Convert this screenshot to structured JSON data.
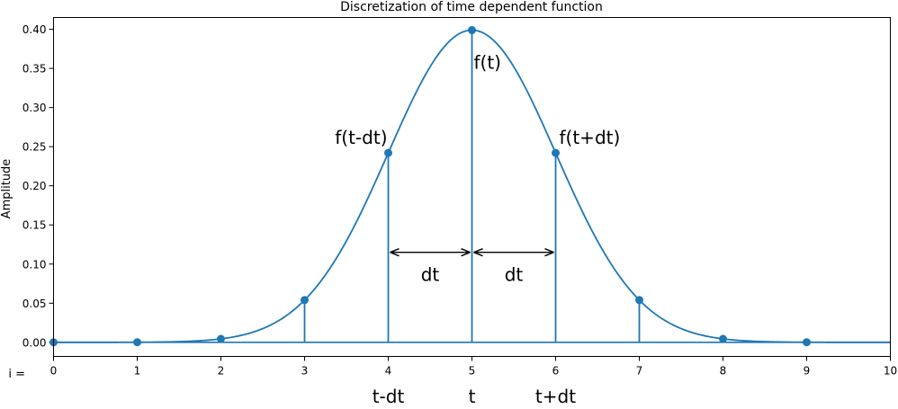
{
  "chart_data": {
    "type": "line",
    "title": "Discretization of time dependent function",
    "xlabel": "",
    "ylabel": "Amplitude",
    "xlim": [
      0,
      10
    ],
    "ylim": [
      -0.018,
      0.415
    ],
    "x_ticks": [
      0,
      1,
      2,
      3,
      4,
      5,
      6,
      7,
      8,
      9,
      10
    ],
    "x_tick_labels": [
      "0",
      "1",
      "2",
      "3",
      "4",
      "5",
      "6",
      "7",
      "8",
      "9",
      "10"
    ],
    "y_ticks": [
      0.0,
      0.05,
      0.1,
      0.15,
      0.2,
      0.25,
      0.3,
      0.35,
      0.4
    ],
    "y_tick_labels": [
      "0.00",
      "0.05",
      "0.10",
      "0.15",
      "0.20",
      "0.25",
      "0.30",
      "0.35",
      "0.40"
    ],
    "index_label": "i =",
    "grid": false,
    "line_color": "#1f77b4",
    "curve": {
      "mean": 5,
      "std": 1
    },
    "samples": {
      "x": [
        0,
        1,
        2,
        3,
        4,
        5,
        6,
        7,
        8,
        9
      ],
      "y": [
        0.0,
        0.0001,
        0.0044,
        0.054,
        0.242,
        0.3989,
        0.242,
        0.054,
        0.0044,
        0.0001
      ]
    },
    "stems_at": [
      3,
      4,
      5,
      6,
      7
    ],
    "point_labels": [
      {
        "text": "f(t-dt)",
        "x": 4,
        "y": 0.242
      },
      {
        "text": "f(t)",
        "x": 5,
        "y": 0.3989
      },
      {
        "text": "f(t+dt)",
        "x": 6,
        "y": 0.242
      }
    ],
    "intervals": [
      {
        "from": 4,
        "to": 5,
        "y": 0.115,
        "label": "dt"
      },
      {
        "from": 5,
        "to": 6,
        "y": 0.115,
        "label": "dt"
      }
    ],
    "bottom_labels": [
      {
        "text": "t-dt",
        "x": 4
      },
      {
        "text": "t",
        "x": 5
      },
      {
        "text": "t+dt",
        "x": 6
      }
    ]
  }
}
